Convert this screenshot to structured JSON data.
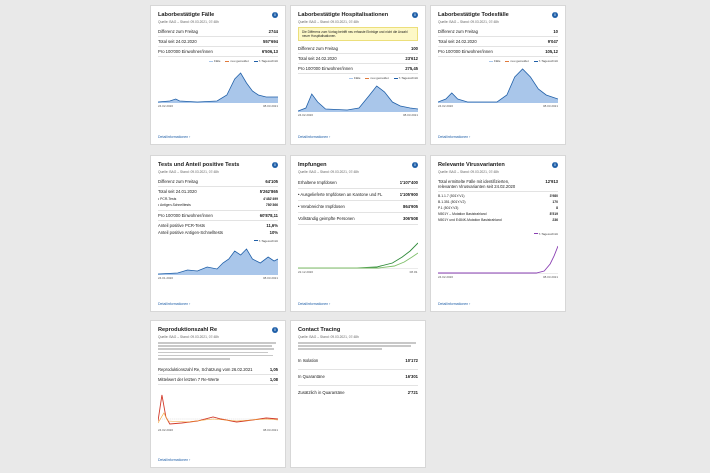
{
  "cards": {
    "cases": {
      "title": "Laborbestätigte Fälle",
      "source": "Quelle: BAG – Stand: 09.03.2021, 07:48h",
      "rows": [
        {
          "label": "Differenz zum Freitag",
          "value": "2744"
        },
        {
          "label": "Total seit 24.02.2020",
          "value": "557'694"
        },
        {
          "label": "Pro 100'000 Einwohner/innen",
          "value": "6'506,13"
        }
      ],
      "legend": [
        "Fälle",
        "neu gemeldet",
        "7-Tagesschnitt"
      ],
      "x_start": "24.02.2020",
      "x_end": "08.03.2021",
      "link": "Detailinformationen"
    },
    "hosp": {
      "title": "Laborbestätigte Hospitalisationen",
      "source": "Quelle: BAG – Stand: 09.03.2021, 07:48h",
      "note": "Die Differenz zum Vortag betrifft neu erfasste Einträge und nicht die Anzahl neuer Hospitalisationen.",
      "rows": [
        {
          "label": "Differenz zum Freitag",
          "value": "100"
        },
        {
          "label": "Total seit 24.02.2020",
          "value": "23'612"
        },
        {
          "label": "Pro 100'000 Einwohner/innen",
          "value": "275,45"
        }
      ],
      "legend": [
        "Fälle",
        "neu gemeldet",
        "7-Tagesschnitt"
      ],
      "x_start": "24.02.2020",
      "x_end": "08.03.2021",
      "link": "Detailinformationen"
    },
    "deaths": {
      "title": "Laborbestätigte Todesfälle",
      "source": "Quelle: BAG – Stand: 09.03.2021, 07:48h",
      "rows": [
        {
          "label": "Differenz zum Freitag",
          "value": "10"
        },
        {
          "label": "Total seit 24.02.2020",
          "value": "9'047"
        },
        {
          "label": "Pro 100'000 Einwohner/innen",
          "value": "105,12"
        }
      ],
      "legend": [
        "Fälle",
        "neu gemeldet",
        "7-Tagesschnitt"
      ],
      "x_start": "24.02.2020",
      "x_end": "08.03.2021",
      "link": "Detailinformationen"
    },
    "tests": {
      "title": "Tests und Anteil positive Tests",
      "source": "Quelle: BAG – Stand: 09.03.2021, 07:48h",
      "rows": [
        {
          "label": "Differenz zum Freitag",
          "value": "64'105"
        },
        {
          "label": "Total seit 24.01.2020",
          "value": "5'262'865"
        },
        {
          "label": "PCR-Tests",
          "value": "4'482'499",
          "sub": true
        },
        {
          "label": "Antigen-Schnelltests",
          "value": "780'366",
          "sub": true
        },
        {
          "label": "Pro 100'000 Einwohner/innen",
          "value": "60'878,11"
        },
        {
          "label": "Anteil positive PCR-Tests",
          "value": "11,6%",
          "plain": true
        },
        {
          "label": "Anteil positive Antigen-Schnelltests",
          "value": "10%",
          "plain": true
        }
      ],
      "legend": [
        "7-Tagesschnitt"
      ],
      "x_start": "24.01.2020",
      "x_end": "08.03.2021",
      "link": "Detailinformationen"
    },
    "vacc": {
      "title": "Impfungen",
      "source": "Quelle: BAG – Stand: 09.03.2021, 07:48h",
      "rows": [
        {
          "label": "Erhaltene Impfdosen",
          "value": "1'107'400"
        },
        {
          "label": "Ausgelieferte Impfdosen an Kantone und FL",
          "value": "1'105'900"
        },
        {
          "label": "Verabreichte Impfdosen",
          "value": "864'905"
        },
        {
          "label": "Vollständig geimpfte Personen",
          "value": "306'508"
        }
      ],
      "x_start": "22.12.2020",
      "x_end": "08.03.",
      "link": "Detailinformationen"
    },
    "variants": {
      "title": "Relevante Virusvarianten",
      "source": "Quelle: BAG – Stand: 09.03.2021, 07:48h",
      "rows": [
        {
          "label": "Total ermittelte Fälle mit identifizierten, relevanten Virusvarianten seit 24.02.2020",
          "value": "12'913"
        },
        {
          "label": "B.1.1.7 (501Y.V1)",
          "value": "3'980",
          "sub": true
        },
        {
          "label": "B.1.351 (501Y.V2)",
          "value": "170",
          "sub": true
        },
        {
          "label": "P.1 (501Y.V3)",
          "value": "8",
          "sub": true
        },
        {
          "label": "N501Y – Mutation Basistrahland",
          "value": "8'519",
          "sub": true
        },
        {
          "label": "N501Y und E484K-Mutation Basistrahland",
          "value": "236",
          "sub": true
        }
      ],
      "legend": [
        "7-Tagesschnitt"
      ],
      "x_start": "24.02.2020",
      "x_end": "08.03.2021",
      "link": "Detailinformationen"
    },
    "repro": {
      "title": "Reproduktionszahl Re",
      "source": "Quelle: BAG – Stand: 09.03.2021, 07:48h",
      "rows": [
        {
          "label": "Reproduktionszahl Re, Schätzung vom 26.02.2021",
          "value": "1,05"
        },
        {
          "label": "Mittelwert der letzten 7 Re-Werte",
          "value": "1,08"
        }
      ],
      "x_start": "24.02.2020",
      "x_end": "08.03.2021",
      "link": "Detailinformationen"
    },
    "tracing": {
      "title": "Contact Tracing",
      "source": "Quelle: BAG – Stand: 09.03.2021, 07:48h",
      "rows": [
        {
          "label": "In Isolation",
          "value": "10'172"
        },
        {
          "label": "In Quarantäne",
          "value": "16'301"
        },
        {
          "label": "Zusätzlich in Quarantäne",
          "value": "2'721"
        }
      ]
    }
  },
  "colors": {
    "accent": "#1f5fa8",
    "area": "#a9c6ea",
    "line": "#1f5fa8",
    "note": "#fdf8c7"
  },
  "icon": "info-icon"
}
